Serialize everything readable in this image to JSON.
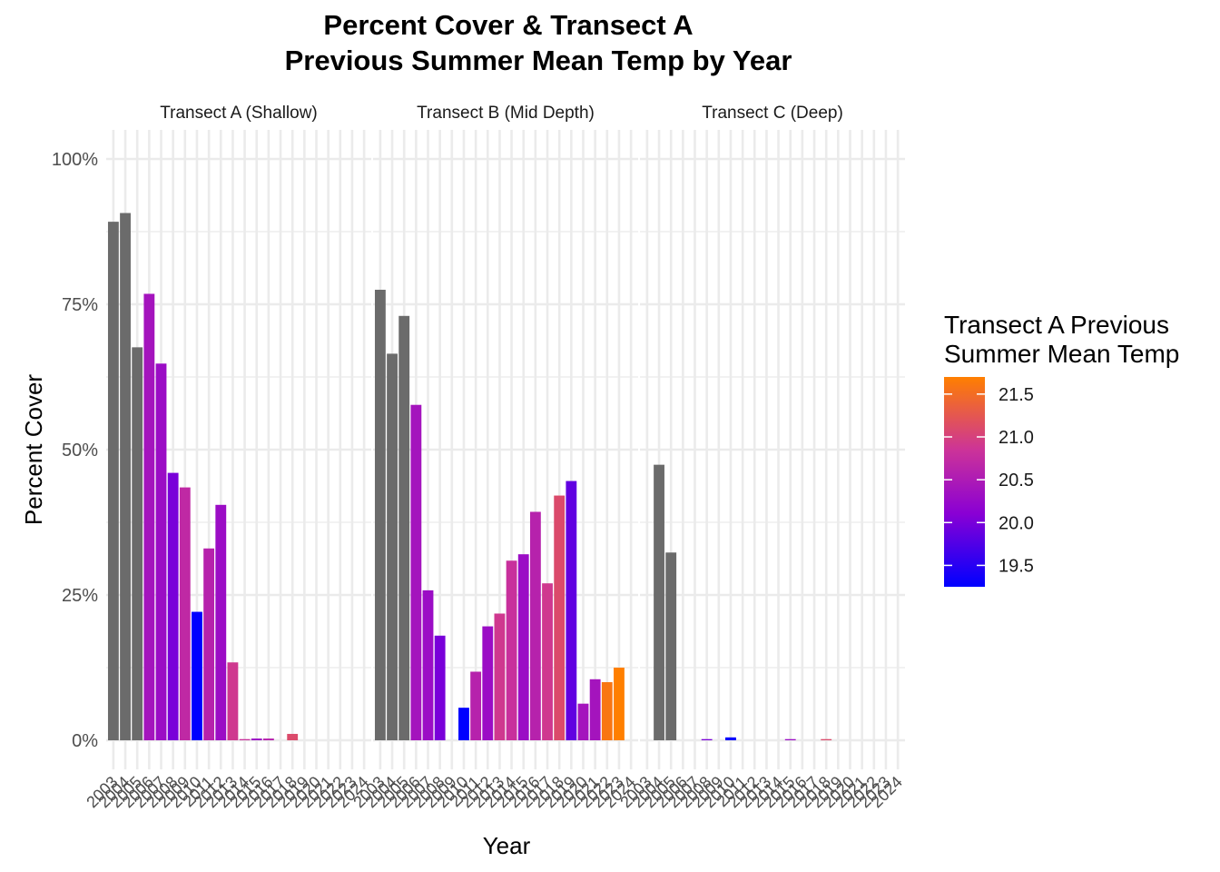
{
  "chart_data": {
    "type": "bar",
    "title_lines": [
      "Percent Cover & Transect A",
      "Previous Summer Mean Temp by Year"
    ],
    "xlabel": "Year",
    "ylabel": "Percent Cover",
    "ylim": [
      -0.05,
      1.05
    ],
    "y_ticks": [
      0,
      0.25,
      0.5,
      0.75,
      1.0
    ],
    "y_tick_labels": [
      "0%",
      "25%",
      "50%",
      "75%",
      "100%"
    ],
    "categories": [
      "2003",
      "2004",
      "2005",
      "2006",
      "2007",
      "2008",
      "2009",
      "2010",
      "2011",
      "2012",
      "2013",
      "2014",
      "2015",
      "2016",
      "2017",
      "2018",
      "2019",
      "2020",
      "2021",
      "2022",
      "2023",
      "2024"
    ],
    "grid": true,
    "legend": {
      "title_lines": [
        "Transect A Previous",
        "Summer Mean Temp"
      ],
      "position": "right",
      "range": [
        19.25,
        21.7
      ],
      "ticks": [
        19.5,
        20.0,
        20.5,
        21.0,
        21.5
      ],
      "tick_labels": [
        "19.5",
        "20.0",
        "20.5",
        "21.0",
        "21.5"
      ],
      "low_color": "#0000ff",
      "high_color": "#ff7f00",
      "na_color": "#6b6b6b"
    },
    "temps": [
      null,
      null,
      null,
      20.4,
      20.3,
      20.0,
      20.7,
      19.25,
      20.6,
      20.3,
      20.9,
      20.8,
      20.3,
      20.6,
      20.9,
      21.1,
      19.85,
      20.4,
      20.4,
      21.6,
      21.7,
      20.75
    ],
    "panels": [
      {
        "strip": "Transect A (Shallow)",
        "values": [
          0.892,
          0.907,
          0.676,
          0.768,
          0.648,
          0.46,
          0.435,
          0.221,
          0.33,
          0.405,
          0.134,
          0.002,
          0.003,
          0.003,
          null,
          0.011,
          null,
          null,
          null,
          null,
          null,
          null
        ]
      },
      {
        "strip": "Transect B (Mid Depth)",
        "values": [
          0.775,
          0.665,
          0.73,
          0.577,
          0.258,
          0.18,
          null,
          0.056,
          0.118,
          0.196,
          0.218,
          0.309,
          0.32,
          0.393,
          0.27,
          0.421,
          0.446,
          0.063,
          0.105,
          0.1,
          0.125,
          null
        ]
      },
      {
        "strip": "Transect C (Deep)",
        "values": [
          null,
          0.474,
          0.323,
          null,
          null,
          0.002,
          null,
          0.005,
          null,
          null,
          null,
          null,
          0.002,
          null,
          null,
          0.002,
          null,
          null,
          null,
          null,
          null,
          null
        ]
      }
    ]
  }
}
